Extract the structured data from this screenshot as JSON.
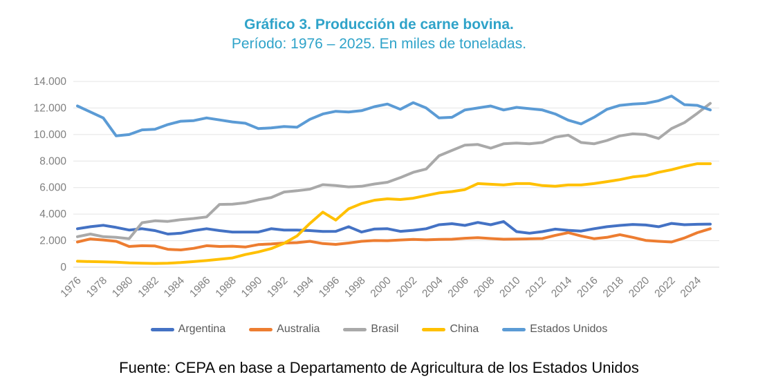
{
  "title": {},
  "footer": {
    "source": "Fuente: CEPA en base a Departamento de Agricultura de los Estados Unidos"
  },
  "colors": {
    "title_text": "#2fa3c9",
    "axis_text": "#7f7f7f",
    "gridline": "#e4e4e4",
    "baseline": "#d6d6d6",
    "legend_text": "#595959"
  },
  "chart_data": {
    "type": "line",
    "title": "Gráfico 3. Producción de carne bovina.",
    "subtitle": "Período: 1976 – 2025. En miles de toneladas.",
    "xlabel": "",
    "ylabel": "",
    "ylim": [
      0,
      14000
    ],
    "grid": true,
    "legend_position": "bottom",
    "x": [
      1976,
      1977,
      1978,
      1979,
      1980,
      1981,
      1982,
      1983,
      1984,
      1985,
      1986,
      1987,
      1988,
      1989,
      1990,
      1991,
      1992,
      1993,
      1994,
      1995,
      1996,
      1997,
      1998,
      1999,
      2000,
      2001,
      2002,
      2003,
      2004,
      2005,
      2006,
      2007,
      2008,
      2009,
      2010,
      2011,
      2012,
      2013,
      2014,
      2015,
      2016,
      2017,
      2018,
      2019,
      2020,
      2021,
      2022,
      2023,
      2024,
      2025
    ],
    "x_tick_labels": [
      "1976",
      "1978",
      "1980",
      "1982",
      "1984",
      "1986",
      "1988",
      "1990",
      "1992",
      "1994",
      "1996",
      "1998",
      "2000",
      "2002",
      "2004",
      "2006",
      "2008",
      "2010",
      "2012",
      "2014",
      "2016",
      "2018",
      "2020",
      "2022",
      "2024"
    ],
    "y_ticks": [
      0,
      2000,
      4000,
      6000,
      8000,
      10000,
      12000,
      14000
    ],
    "y_tick_labels": [
      "0",
      "2.000",
      "4.000",
      "6.000",
      "8.000",
      "10.000",
      "12.000",
      "14.000"
    ],
    "series": [
      {
        "name": "Argentina",
        "color": "#4472c4",
        "values": [
          2900,
          3050,
          3160,
          3000,
          2800,
          2900,
          2760,
          2500,
          2560,
          2760,
          2900,
          2760,
          2650,
          2650,
          2650,
          2900,
          2800,
          2800,
          2760,
          2690,
          2700,
          3050,
          2650,
          2880,
          2900,
          2700,
          2780,
          2900,
          3200,
          3280,
          3150,
          3370,
          3200,
          3440,
          2680,
          2560,
          2680,
          2870,
          2780,
          2720,
          2900,
          3050,
          3150,
          3220,
          3180,
          3050,
          3300,
          3200,
          3230,
          3250
        ]
      },
      {
        "name": "Australia",
        "color": "#ed7d31",
        "values": [
          1900,
          2130,
          2050,
          1950,
          1560,
          1620,
          1600,
          1350,
          1300,
          1420,
          1620,
          1560,
          1580,
          1520,
          1700,
          1750,
          1820,
          1850,
          1950,
          1780,
          1720,
          1820,
          1950,
          2010,
          2000,
          2050,
          2090,
          2060,
          2090,
          2110,
          2180,
          2230,
          2160,
          2110,
          2120,
          2140,
          2160,
          2400,
          2600,
          2350,
          2150,
          2250,
          2450,
          2250,
          2020,
          1950,
          1900,
          2200,
          2600,
          2900
        ]
      },
      {
        "name": "Brasil",
        "color": "#a9a9a9",
        "values": [
          2300,
          2500,
          2300,
          2250,
          2150,
          3350,
          3500,
          3450,
          3580,
          3670,
          3790,
          4730,
          4750,
          4850,
          5080,
          5250,
          5670,
          5760,
          5880,
          6220,
          6150,
          6050,
          6100,
          6270,
          6400,
          6750,
          7150,
          7400,
          8400,
          8800,
          9200,
          9250,
          8970,
          9300,
          9350,
          9300,
          9400,
          9800,
          9950,
          9400,
          9300,
          9550,
          9900,
          10050,
          10000,
          9700,
          10450,
          10900,
          11600,
          12350
        ]
      },
      {
        "name": "China",
        "color": "#ffc000",
        "values": [
          450,
          420,
          400,
          380,
          330,
          300,
          280,
          300,
          350,
          420,
          500,
          600,
          700,
          950,
          1150,
          1400,
          1800,
          2350,
          3300,
          4150,
          3550,
          4400,
          4800,
          5050,
          5150,
          5100,
          5200,
          5400,
          5600,
          5700,
          5850,
          6300,
          6250,
          6200,
          6300,
          6300,
          6150,
          6100,
          6200,
          6200,
          6300,
          6450,
          6600,
          6800,
          6900,
          7150,
          7350,
          7600,
          7800,
          7800
        ]
      },
      {
        "name": "Estados Unidos",
        "color": "#5b9bd5",
        "values": [
          12150,
          11700,
          11250,
          9900,
          10000,
          10350,
          10400,
          10750,
          11000,
          11050,
          11250,
          11100,
          10950,
          10850,
          10450,
          10500,
          10600,
          10550,
          11150,
          11550,
          11750,
          11700,
          11800,
          12100,
          12300,
          11900,
          12400,
          12000,
          11250,
          11300,
          11850,
          12000,
          12150,
          11850,
          12050,
          11950,
          11850,
          11550,
          11080,
          10800,
          11300,
          11900,
          12200,
          12300,
          12350,
          12550,
          12900,
          12250,
          12200,
          11850
        ]
      }
    ]
  }
}
